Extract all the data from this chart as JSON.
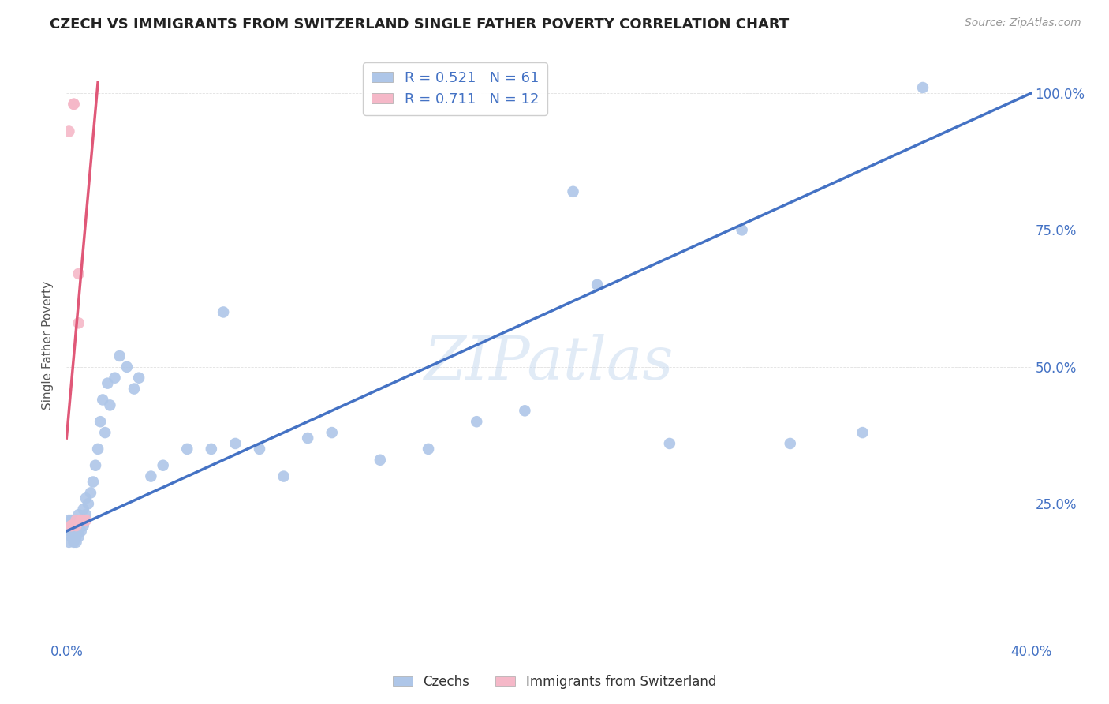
{
  "title": "CZECH VS IMMIGRANTS FROM SWITZERLAND SINGLE FATHER POVERTY CORRELATION CHART",
  "source": "Source: ZipAtlas.com",
  "ylabel_label": "Single Father Poverty",
  "xlim": [
    0.0,
    0.4
  ],
  "ylim": [
    0.0,
    1.08
  ],
  "czech_R": "0.521",
  "czech_N": "61",
  "swiss_R": "0.711",
  "swiss_N": "12",
  "legend_label_1": "Czechs",
  "legend_label_2": "Immigrants from Switzerland",
  "blue_color": "#aec6e8",
  "pink_color": "#f5b8c8",
  "line_blue": "#4472c4",
  "line_pink": "#e05878",
  "text_blue": "#4472c4",
  "grid_color": "#e0e0e0",
  "background": "#ffffff",
  "watermark": "ZIPatlas",
  "czech_x": [
    0.001,
    0.001,
    0.001,
    0.002,
    0.002,
    0.002,
    0.002,
    0.003,
    0.003,
    0.003,
    0.003,
    0.004,
    0.004,
    0.004,
    0.004,
    0.005,
    0.005,
    0.005,
    0.005,
    0.006,
    0.006,
    0.007,
    0.007,
    0.008,
    0.008,
    0.009,
    0.01,
    0.011,
    0.012,
    0.013,
    0.014,
    0.015,
    0.016,
    0.017,
    0.018,
    0.02,
    0.022,
    0.025,
    0.028,
    0.03,
    0.035,
    0.04,
    0.05,
    0.06,
    0.065,
    0.07,
    0.08,
    0.09,
    0.1,
    0.11,
    0.13,
    0.15,
    0.17,
    0.19,
    0.21,
    0.22,
    0.25,
    0.28,
    0.3,
    0.33,
    0.355
  ],
  "czech_y": [
    0.2,
    0.18,
    0.22,
    0.19,
    0.21,
    0.2,
    0.22,
    0.18,
    0.2,
    0.19,
    0.21,
    0.2,
    0.19,
    0.22,
    0.18,
    0.2,
    0.21,
    0.19,
    0.23,
    0.2,
    0.22,
    0.21,
    0.24,
    0.23,
    0.26,
    0.25,
    0.27,
    0.29,
    0.32,
    0.35,
    0.4,
    0.44,
    0.38,
    0.47,
    0.43,
    0.48,
    0.52,
    0.5,
    0.46,
    0.48,
    0.3,
    0.32,
    0.35,
    0.35,
    0.6,
    0.36,
    0.35,
    0.3,
    0.37,
    0.38,
    0.33,
    0.35,
    0.4,
    0.42,
    0.82,
    0.65,
    0.36,
    0.75,
    0.36,
    0.38,
    1.01
  ],
  "swiss_x": [
    0.001,
    0.002,
    0.002,
    0.003,
    0.003,
    0.004,
    0.004,
    0.005,
    0.005,
    0.006,
    0.007,
    0.008
  ],
  "swiss_y": [
    0.93,
    0.21,
    0.21,
    0.98,
    0.98,
    0.22,
    0.21,
    0.67,
    0.58,
    0.22,
    0.22,
    0.22
  ],
  "blue_line_x0": 0.0,
  "blue_line_y0": 0.2,
  "blue_line_x1": 0.4,
  "blue_line_y1": 1.0,
  "pink_line_x0": 0.0,
  "pink_line_y0": 0.37,
  "pink_line_x1": 0.013,
  "pink_line_y1": 1.02
}
